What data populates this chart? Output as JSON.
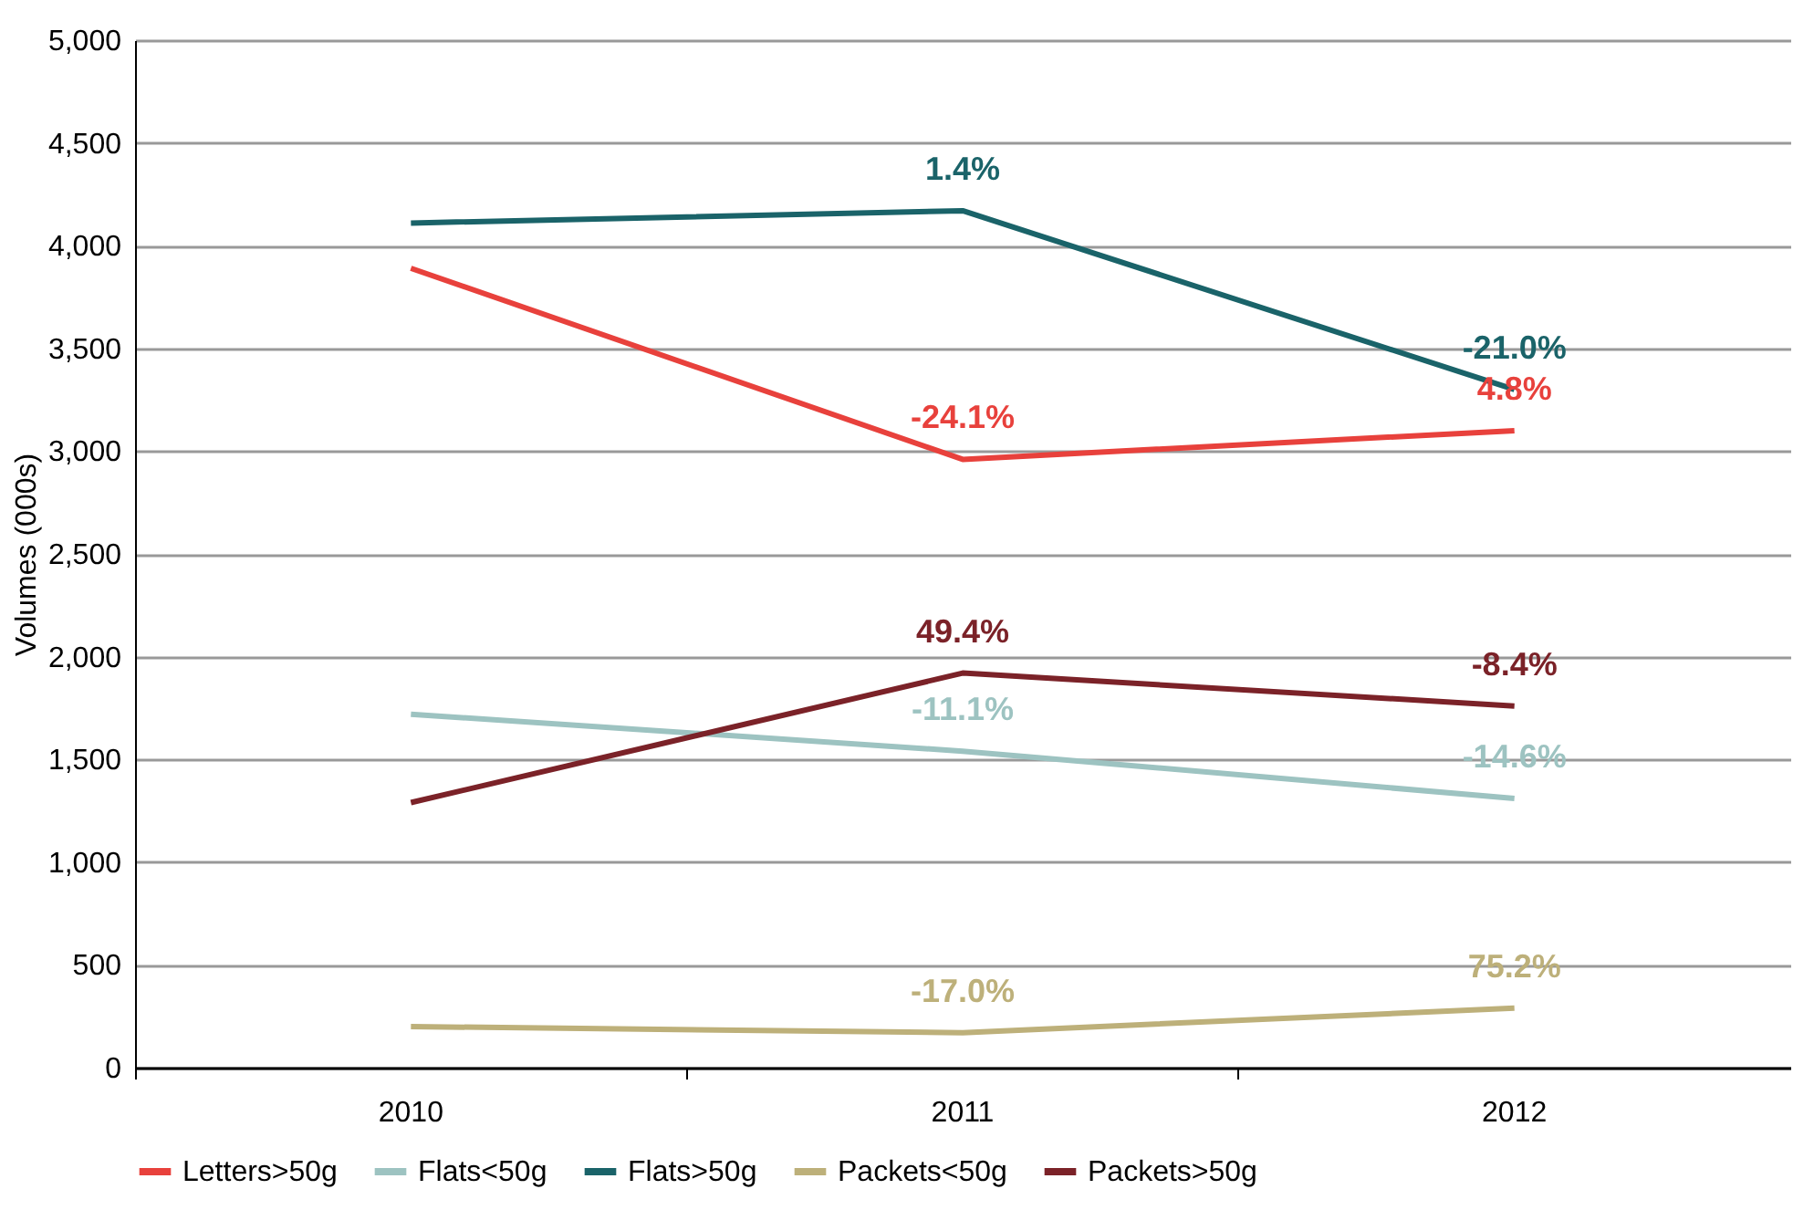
{
  "chart_data": {
    "type": "line",
    "ylabel": "Volumes (000s)",
    "categories": [
      "2010",
      "2011",
      "2012"
    ],
    "series": [
      {
        "name": "Letters>50g",
        "color": "#e8413c",
        "values": [
          3890,
          2960,
          3100
        ]
      },
      {
        "name": "Flats<50g",
        "color": "#9dc3c1",
        "values": [
          1720,
          1540,
          1310
        ]
      },
      {
        "name": "Flats>50g",
        "color": "#1a6369",
        "values": [
          4110,
          4170,
          3300
        ]
      },
      {
        "name": "Packets<50g",
        "color": "#bdb07a",
        "values": [
          200,
          170,
          290
        ]
      },
      {
        "name": "Packets>50g",
        "color": "#7b2228",
        "values": [
          1290,
          1920,
          1760
        ]
      }
    ],
    "annotations": [
      {
        "text": "-24.1%",
        "x": "2011",
        "y": 2960
      },
      {
        "text": "4.8%",
        "x": "2012",
        "y": 3100
      },
      {
        "text": "-11.1%",
        "x": "2011",
        "y": 1540
      },
      {
        "text": "-14.6%",
        "x": "2012",
        "y": 1310
      },
      {
        "text": "1.4%",
        "x": "2011",
        "y": 4170
      },
      {
        "text": "-21.0%",
        "x": "2012",
        "y": 3300
      },
      {
        "text": "-17.0%",
        "x": "2011",
        "y": 170
      },
      {
        "text": "75.2%",
        "x": "2012",
        "y": 290
      },
      {
        "text": "49.4%",
        "x": "2011",
        "y": 1920
      },
      {
        "text": "-8.4%",
        "x": "2012",
        "y": 1760
      }
    ],
    "ylim": [
      0,
      5000
    ],
    "yticks": [
      0,
      {
        "value": 500,
        "label": "500"
      },
      {
        "value": 1000,
        "label": "1,000"
      },
      {
        "value": 1500,
        "label": "1,500"
      },
      {
        "value": 2000,
        "label": "2,000"
      },
      {
        "value": 2500,
        "label": "2,500"
      },
      {
        "value": 3000,
        "label": "3,000"
      },
      {
        "value": 3500,
        "label": "3,500"
      },
      {
        "value": 4000,
        "label": "4,000"
      },
      {
        "value": 4500,
        "label": "4,500"
      },
      {
        "value": 5000,
        "label": "5,000"
      }
    ],
    "grid": "y",
    "legend": "bottom",
    "marker": "none",
    "line_style": "solid"
  }
}
